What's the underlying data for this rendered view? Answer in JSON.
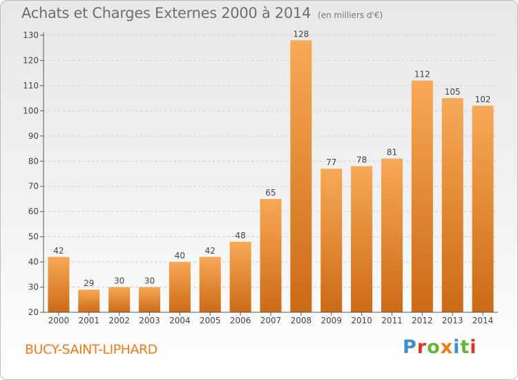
{
  "title": "Achats et Charges Externes 2000 à 2014",
  "subtitle": "(en milliers d'€)",
  "town": "BUCY-SAINT-LIPHARD",
  "logo": {
    "text": "Proxiti",
    "letters": [
      "P",
      "r",
      "o",
      "x",
      "i",
      "t",
      "i"
    ],
    "colors": [
      "#3a8fd1",
      "#e3322b",
      "#6ab537",
      "#ef7b14",
      "#3a8fd1",
      "#6ab537",
      "#e3322b"
    ]
  },
  "colors": {
    "bar_light": "#f7a957",
    "bar_dark": "#cc6a16",
    "axis": "#555555",
    "grid": "#cfcfcf"
  },
  "chart_data": {
    "type": "bar",
    "categories": [
      "2000",
      "2001",
      "2002",
      "2003",
      "2004",
      "2005",
      "2006",
      "2007",
      "2008",
      "2009",
      "2010",
      "2011",
      "2012",
      "2013",
      "2014"
    ],
    "values": [
      42,
      29,
      30,
      30,
      40,
      42,
      48,
      65,
      128,
      77,
      78,
      81,
      112,
      105,
      102
    ],
    "ylim": [
      20,
      130
    ],
    "yticks": [
      20,
      30,
      40,
      50,
      60,
      70,
      80,
      90,
      100,
      110,
      120,
      130
    ],
    "grid": true,
    "xlabel": "",
    "ylabel": ""
  }
}
